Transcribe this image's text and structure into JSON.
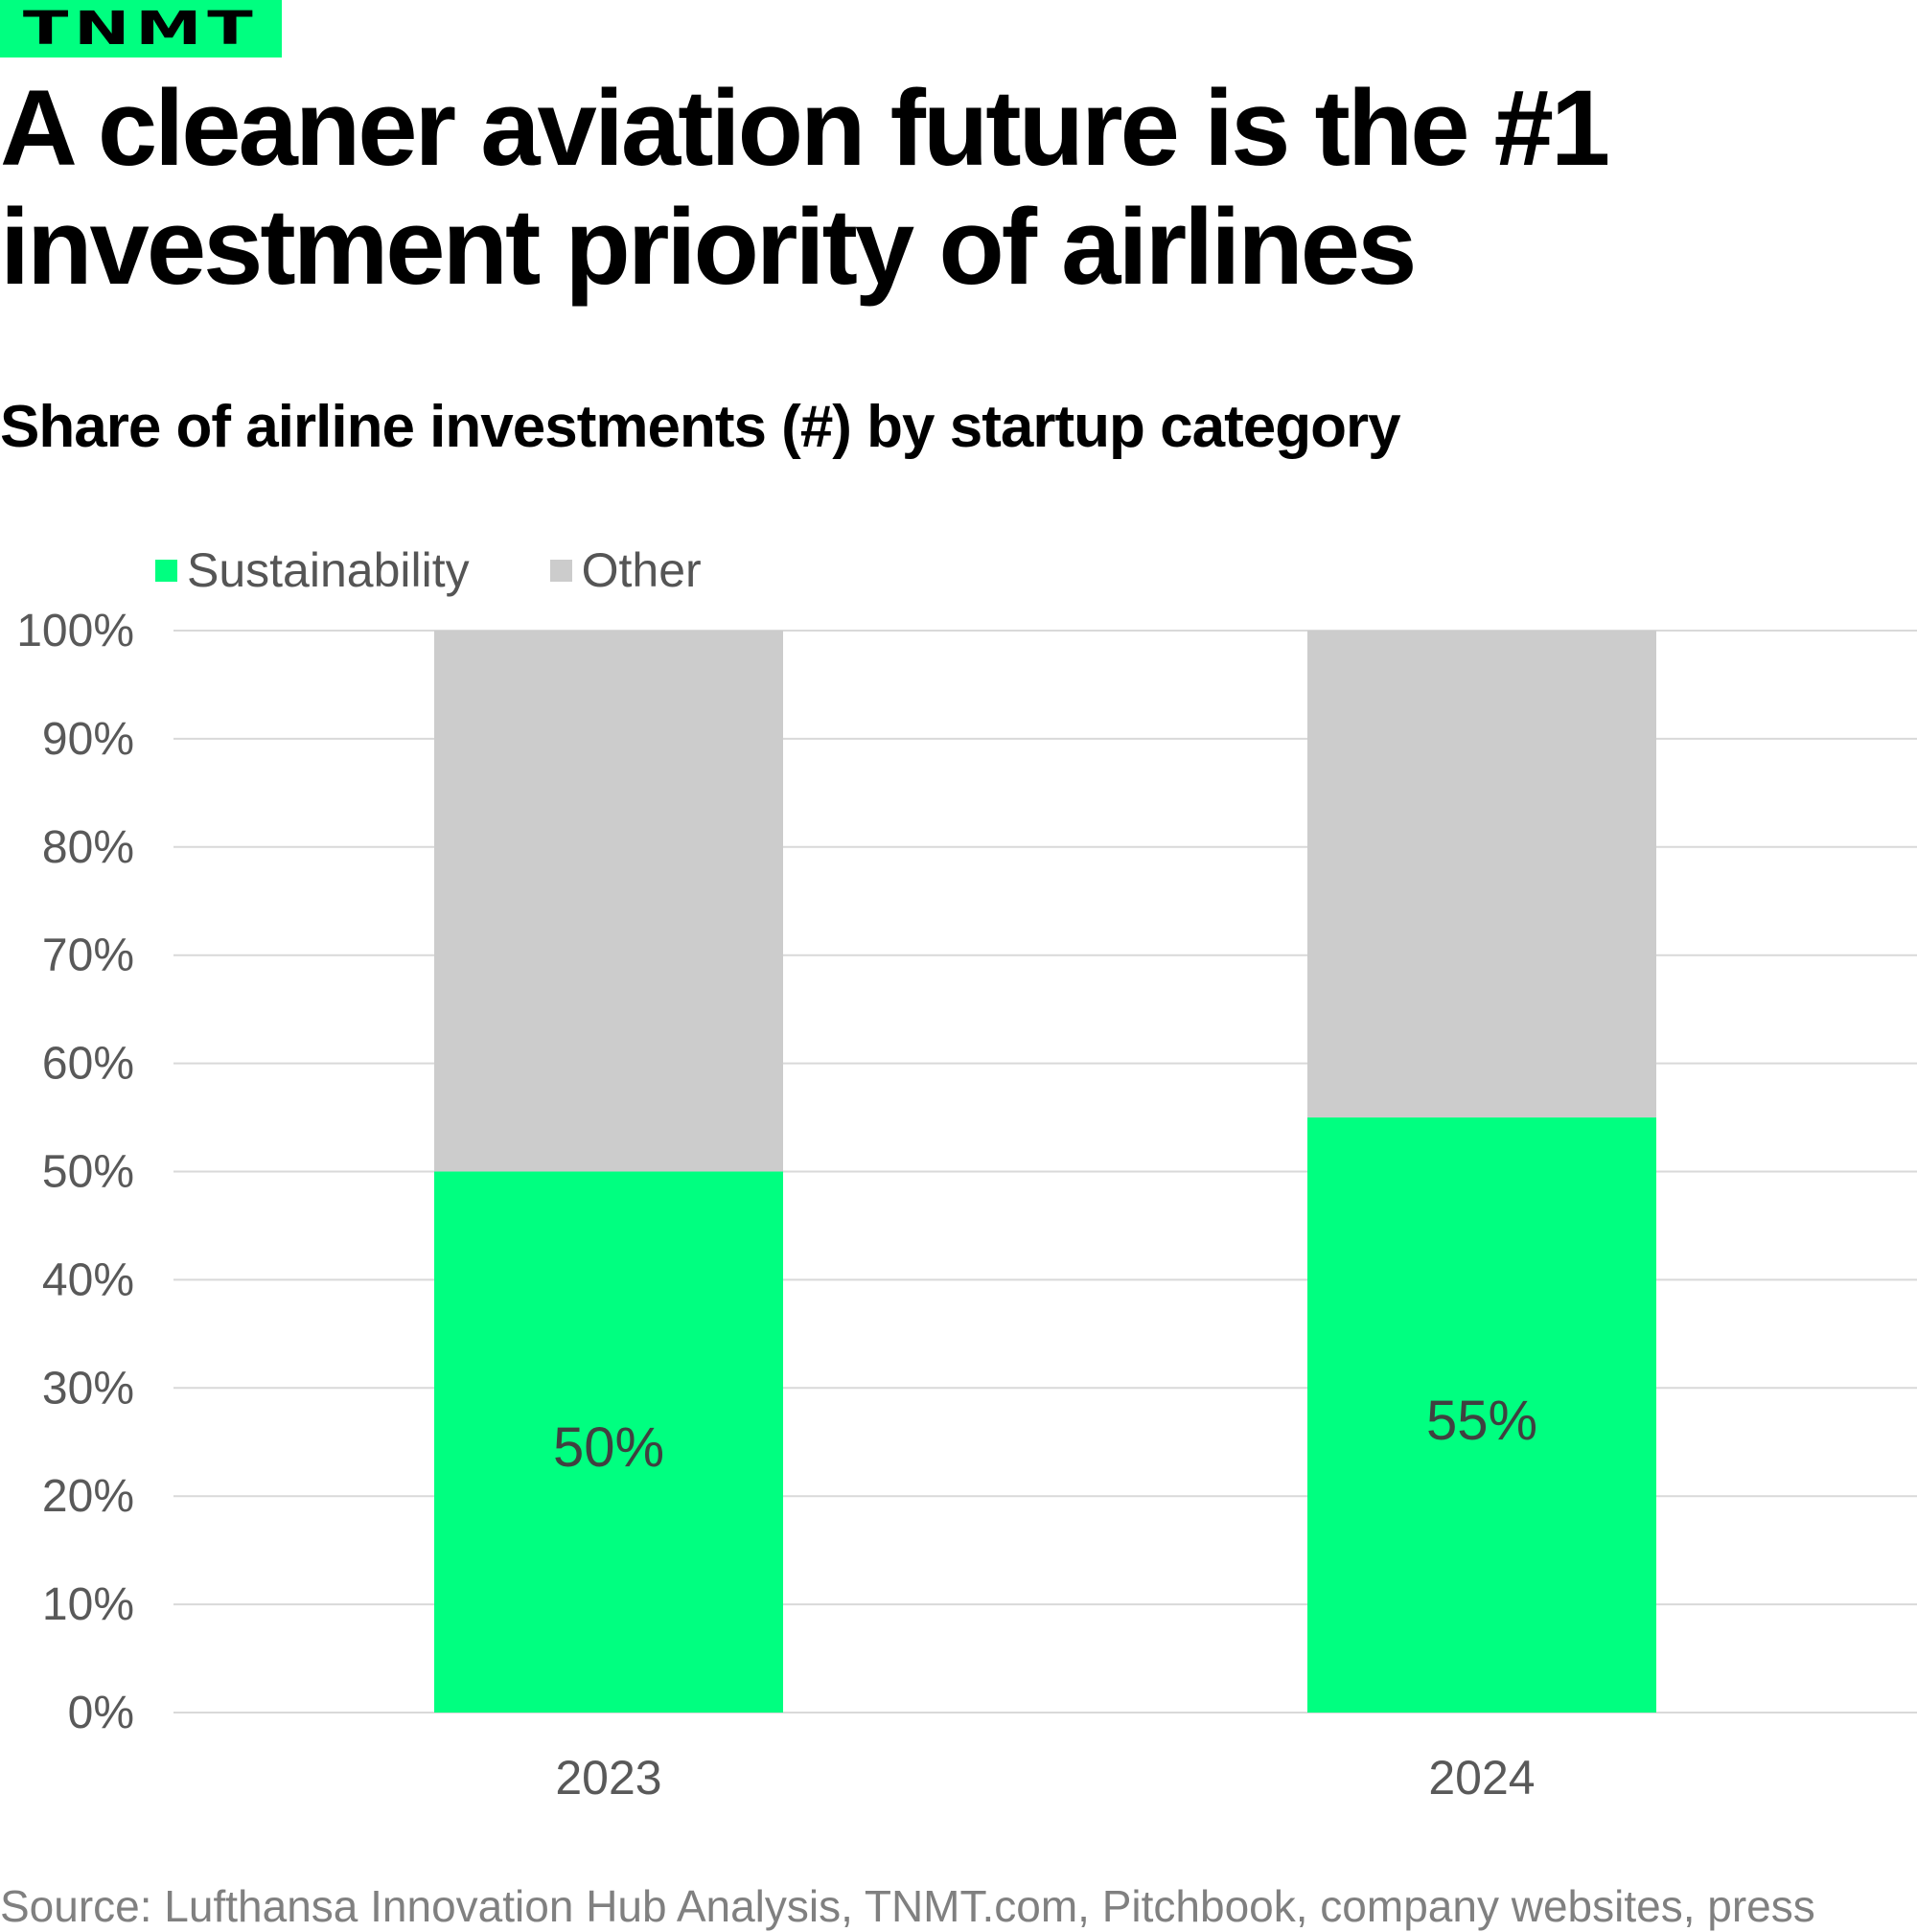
{
  "brand": {
    "logo_text": "TNMT",
    "color": "#00ff80"
  },
  "title": "A cleaner aviation future is the #1 investment priority of airlines",
  "subtitle": "Share of airline investments (#) by startup category",
  "source": "Source: Lufthansa Innovation Hub Analysis, TNMT.com, Pitchbook, company websites, press",
  "chart_data": {
    "type": "bar",
    "stacked": true,
    "title": "Share of airline investments (#) by startup category",
    "xlabel": "",
    "ylabel": "",
    "categories": [
      "2023",
      "2024"
    ],
    "series": [
      {
        "name": "Sustainability",
        "values": [
          50,
          55
        ],
        "color": "#00ff80",
        "labels": [
          "50%",
          "55%"
        ]
      },
      {
        "name": "Other",
        "values": [
          50,
          45
        ],
        "color": "#cccccc"
      }
    ],
    "ylim": [
      0,
      100
    ],
    "yticks": [
      0,
      10,
      20,
      30,
      40,
      50,
      60,
      70,
      80,
      90,
      100
    ],
    "ytick_labels": [
      "0%",
      "10%",
      "20%",
      "30%",
      "40%",
      "50%",
      "60%",
      "70%",
      "80%",
      "90%",
      "100%"
    ],
    "grid": true,
    "legend": {
      "position": "top-left",
      "entries": [
        "Sustainability",
        "Other"
      ]
    }
  }
}
